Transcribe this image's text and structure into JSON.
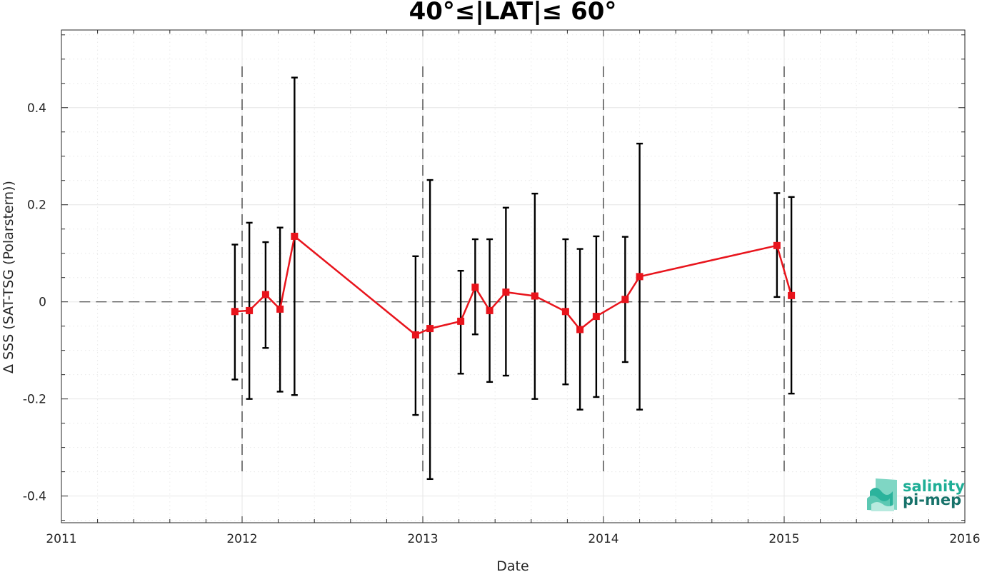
{
  "chart_data": {
    "type": "line",
    "title": "40°≤|LAT|≤ 60°",
    "xlabel": "Date",
    "ylabel": "Δ SSS (SAT-TSG (Polarstern))",
    "xlim": [
      2011,
      2016
    ],
    "ylim": [
      -0.455,
      0.56
    ],
    "x_ticks": [
      2011,
      2012,
      2013,
      2014,
      2015,
      2016
    ],
    "x_tick_labels": [
      "2011",
      "2012",
      "2013",
      "2014",
      "2015",
      "2016"
    ],
    "y_ticks": [
      -0.4,
      -0.2,
      0,
      0.2,
      0.4
    ],
    "y_tick_labels": [
      "-0.4",
      "-0.2",
      "0",
      "0.2",
      "0.4"
    ],
    "grid": true,
    "reference_line_y": 0,
    "year_markers_x": [
      2012,
      2013,
      2014,
      2015
    ],
    "colors": {
      "series": "#e8141c",
      "errorbar": "#000000",
      "grid": "#e6e6e6"
    },
    "series": [
      {
        "points": [
          {
            "x": 2011.96,
            "y": -0.02,
            "low": -0.16,
            "high": 0.118
          },
          {
            "x": 2012.04,
            "y": -0.018,
            "low": -0.2,
            "high": 0.163
          },
          {
            "x": 2012.13,
            "y": 0.015,
            "low": -0.095,
            "high": 0.123
          },
          {
            "x": 2012.21,
            "y": -0.015,
            "low": -0.185,
            "high": 0.153
          },
          {
            "x": 2012.29,
            "y": 0.135,
            "low": -0.192,
            "high": 0.462
          },
          {
            "x": 2012.96,
            "y": -0.068,
            "low": -0.233,
            "high": 0.094
          },
          {
            "x": 2013.04,
            "y": -0.055,
            "low": -0.365,
            "high": 0.251
          },
          {
            "x": 2013.21,
            "y": -0.04,
            "low": -0.148,
            "high": 0.064
          },
          {
            "x": 2013.29,
            "y": 0.03,
            "low": -0.067,
            "high": 0.129
          },
          {
            "x": 2013.37,
            "y": -0.018,
            "low": -0.165,
            "high": 0.129
          },
          {
            "x": 2013.46,
            "y": 0.02,
            "low": -0.152,
            "high": 0.194
          },
          {
            "x": 2013.62,
            "y": 0.012,
            "low": -0.2,
            "high": 0.223
          },
          {
            "x": 2013.79,
            "y": -0.02,
            "low": -0.17,
            "high": 0.129
          },
          {
            "x": 2013.87,
            "y": -0.057,
            "low": -0.222,
            "high": 0.109
          },
          {
            "x": 2013.96,
            "y": -0.03,
            "low": -0.196,
            "high": 0.135
          },
          {
            "x": 2014.12,
            "y": 0.005,
            "low": -0.124,
            "high": 0.134
          },
          {
            "x": 2014.2,
            "y": 0.052,
            "low": -0.222,
            "high": 0.326
          },
          {
            "x": 2014.96,
            "y": 0.116,
            "low": 0.01,
            "high": 0.224
          },
          {
            "x": 2015.04,
            "y": 0.013,
            "low": -0.189,
            "high": 0.216
          }
        ]
      }
    ]
  },
  "logo": {
    "line1": "salinity",
    "line2": "pi-mep",
    "color_line1": "#1fae96",
    "color_line2": "#17726a"
  }
}
